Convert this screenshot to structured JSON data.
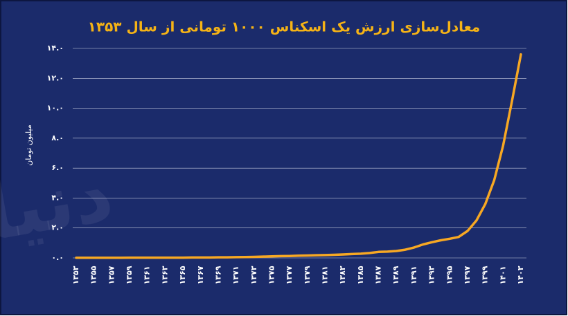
{
  "chart_data": {
    "type": "line",
    "title": "معادل‌سازی ارزش یک اسکناس ۱۰۰۰ تومانی از سال ۱۳۵۳",
    "y_label": "میلیون تومان",
    "watermark": "دنیای اقتصاد",
    "color": "#f7a823",
    "grid": true,
    "categories": [
      "۱۳۵۳",
      null,
      "۱۳۵۵",
      null,
      "۱۳۵۷",
      null,
      "۱۳۵۹",
      null,
      "۱۳۶۱",
      null,
      "۱۳۶۳",
      null,
      "۱۳۶۵",
      null,
      "۱۳۶۷",
      null,
      "۱۳۶۹",
      null,
      "۱۳۷۱",
      null,
      "۱۳۷۳",
      null,
      "۱۳۷۵",
      null,
      "۱۳۷۷",
      null,
      "۱۳۷۹",
      null,
      "۱۳۸۱",
      null,
      "۱۳۸۳",
      null,
      "۱۳۸۵",
      null,
      "۱۳۸۷",
      null,
      "۱۳۸۹",
      null,
      "۱۳۹۱",
      null,
      "۱۳۹۳",
      null,
      "۱۳۹۵",
      null,
      "۱۳۹۷",
      null,
      "۱۳۹۹",
      null,
      "۱۴۰۱",
      null,
      "۱۴۰۳"
    ],
    "values": [
      0.01,
      0.01,
      0.01,
      0.01,
      0.01,
      0.01,
      0.02,
      0.02,
      0.02,
      0.02,
      0.02,
      0.02,
      0.02,
      0.03,
      0.03,
      0.03,
      0.04,
      0.04,
      0.05,
      0.06,
      0.07,
      0.09,
      0.1,
      0.12,
      0.13,
      0.15,
      0.16,
      0.18,
      0.19,
      0.21,
      0.23,
      0.26,
      0.28,
      0.33,
      0.4,
      0.42,
      0.46,
      0.55,
      0.7,
      0.9,
      1.05,
      1.18,
      1.28,
      1.4,
      1.8,
      2.5,
      3.6,
      5.2,
      7.5,
      10.5,
      13.6
    ],
    "ylim": [
      0,
      14
    ],
    "yticks": [
      {
        "value": 0,
        "label": "۰.۰"
      },
      {
        "value": 2,
        "label": "۲.۰"
      },
      {
        "value": 4,
        "label": "۴.۰"
      },
      {
        "value": 6,
        "label": "۶.۰"
      },
      {
        "value": 8,
        "label": "۸.۰"
      },
      {
        "value": 10,
        "label": "۱۰.۰"
      },
      {
        "value": 12,
        "label": "۱۲.۰"
      },
      {
        "value": 14,
        "label": "۱۴.۰"
      }
    ]
  }
}
